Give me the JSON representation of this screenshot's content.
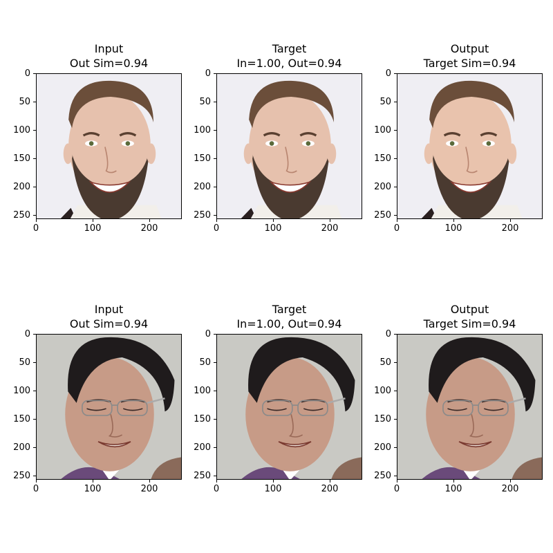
{
  "panels": [
    {
      "title_line1": "Input",
      "title_line2": "Out Sim=0.94",
      "image": "face-1-input"
    },
    {
      "title_line1": "Target",
      "title_line2": "In=1.00, Out=0.94",
      "image": "face-1-target"
    },
    {
      "title_line1": "Output",
      "title_line2": "Target Sim=0.94",
      "image": "face-1-output"
    },
    {
      "title_line1": "Input",
      "title_line2": "Out Sim=0.94",
      "image": "face-2-input"
    },
    {
      "title_line1": "Target",
      "title_line2": "In=1.00, Out=0.94",
      "image": "face-2-target"
    },
    {
      "title_line1": "Output",
      "title_line2": "Target Sim=0.94",
      "image": "face-2-output"
    }
  ],
  "chart_data": {
    "type": "image-grid",
    "rows": 2,
    "cols": 3,
    "xlim": [
      0,
      256
    ],
    "ylim": [
      256,
      0
    ],
    "x_ticks": [
      0,
      100,
      200
    ],
    "y_ticks": [
      0,
      50,
      100,
      150,
      200,
      250
    ],
    "x_tick_labels": [
      "0",
      "100",
      "200"
    ],
    "y_tick_labels": [
      "0",
      "50",
      "100",
      "150",
      "200",
      "250"
    ],
    "grid": false
  },
  "colors": {
    "bg_light": "#efeef3",
    "bg_gray": "#c9c9c4",
    "skin_1": "#e6c1ad",
    "skin_2": "#c79b87",
    "hair_1": "#6b4e3a",
    "hair_2": "#1f1b1c",
    "beard": "#4a3a30"
  }
}
